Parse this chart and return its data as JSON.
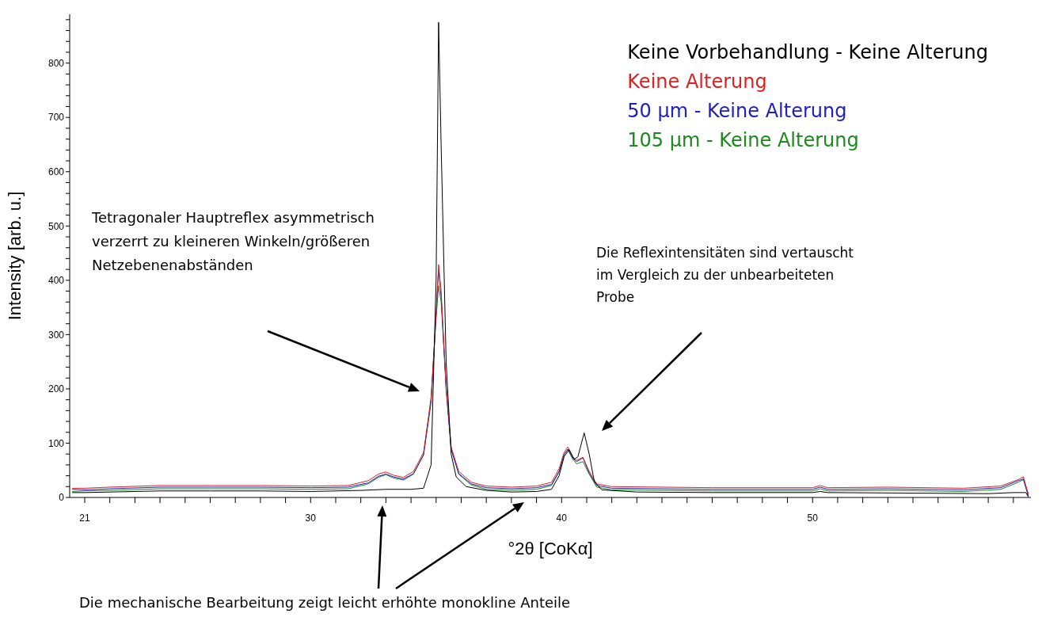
{
  "chart_data": {
    "type": "line",
    "xlabel": "°2θ [CoKα]",
    "ylabel": "Intensity [arb. u.]",
    "xlim": [
      20.4,
      58.7
    ],
    "xticks": [
      {
        "value": 21,
        "label": "21"
      },
      {
        "value": 22,
        "label": null
      },
      {
        "value": 23,
        "label": null
      },
      {
        "value": 24,
        "label": null
      },
      {
        "value": 25,
        "label": null
      },
      {
        "value": 26,
        "label": null
      },
      {
        "value": 27,
        "label": null
      },
      {
        "value": 28,
        "label": null
      },
      {
        "value": 29,
        "label": null
      },
      {
        "value": 30,
        "label": "30"
      },
      {
        "value": 31,
        "label": null
      },
      {
        "value": 32,
        "label": null
      },
      {
        "value": 33,
        "label": null
      },
      {
        "value": 34,
        "label": null
      },
      {
        "value": 35,
        "label": null
      },
      {
        "value": 36,
        "label": null
      },
      {
        "value": 37,
        "label": null
      },
      {
        "value": 38,
        "label": null
      },
      {
        "value": 39,
        "label": null
      },
      {
        "value": 40,
        "label": "40"
      },
      {
        "value": 41,
        "label": null
      },
      {
        "value": 42,
        "label": null
      },
      {
        "value": 43,
        "label": null
      },
      {
        "value": 44,
        "label": null
      },
      {
        "value": 45,
        "label": null
      },
      {
        "value": 46,
        "label": null
      },
      {
        "value": 47,
        "label": null
      },
      {
        "value": 48,
        "label": null
      },
      {
        "value": 49,
        "label": null
      },
      {
        "value": 50,
        "label": "50"
      },
      {
        "value": 51,
        "label": null
      },
      {
        "value": 52,
        "label": null
      },
      {
        "value": 53,
        "label": null
      },
      {
        "value": 54,
        "label": null
      },
      {
        "value": 55,
        "label": null
      },
      {
        "value": 56,
        "label": null
      },
      {
        "value": 57,
        "label": null
      },
      {
        "value": 58,
        "label": null
      }
    ],
    "ylim": [
      0,
      890
    ],
    "yticks": [
      0,
      {
        "value": 20,
        "label": null
      },
      {
        "value": 40,
        "label": null
      },
      {
        "value": 60,
        "label": null
      },
      {
        "value": 80,
        "label": null
      },
      100,
      {
        "value": 120,
        "label": null
      },
      {
        "value": 140,
        "label": null
      },
      {
        "value": 160,
        "label": null
      },
      {
        "value": 180,
        "label": null
      },
      200,
      {
        "value": 220,
        "label": null
      },
      {
        "value": 240,
        "label": null
      },
      {
        "value": 260,
        "label": null
      },
      {
        "value": 280,
        "label": null
      },
      300,
      {
        "value": 320,
        "label": null
      },
      {
        "value": 340,
        "label": null
      },
      {
        "value": 360,
        "label": null
      },
      {
        "value": 380,
        "label": null
      },
      400,
      {
        "value": 420,
        "label": null
      },
      {
        "value": 440,
        "label": null
      },
      {
        "value": 460,
        "label": null
      },
      {
        "value": 480,
        "label": null
      },
      500,
      {
        "value": 520,
        "label": null
      },
      {
        "value": 540,
        "label": null
      },
      {
        "value": 560,
        "label": null
      },
      {
        "value": 580,
        "label": null
      },
      600,
      {
        "value": 620,
        "label": null
      },
      {
        "value": 640,
        "label": null
      },
      {
        "value": 660,
        "label": null
      },
      {
        "value": 680,
        "label": null
      },
      700,
      {
        "value": 720,
        "label": null
      },
      {
        "value": 740,
        "label": null
      },
      {
        "value": 760,
        "label": null
      },
      {
        "value": 780,
        "label": null
      },
      800,
      {
        "value": 820,
        "label": null
      },
      {
        "value": 840,
        "label": null
      },
      {
        "value": 860,
        "label": null
      },
      {
        "value": 880,
        "label": null
      }
    ],
    "grid": false,
    "legend": "top right",
    "marker": "none",
    "line_style": "solid",
    "series": [
      {
        "name": "Keine Vorbehandlung - Keine Alterung",
        "color": "#000000",
        "x": [
          20.5,
          21,
          22,
          24,
          26,
          28,
          30,
          32,
          33,
          34,
          34.5,
          34.8,
          35,
          35.1,
          35.2,
          35.4,
          35.6,
          35.8,
          36.2,
          37,
          38,
          39,
          39.6,
          39.9,
          40.1,
          40.3,
          40.5,
          40.65,
          40.9,
          41.1,
          41.3,
          41.6,
          43,
          46,
          50,
          50.3,
          50.6,
          54,
          57,
          58,
          58.5,
          58.6
        ],
        "values": [
          9,
          9,
          10,
          12,
          12,
          12,
          11,
          13,
          15,
          15,
          17,
          60,
          400,
          875,
          650,
          250,
          80,
          38,
          20,
          13,
          10,
          11,
          15,
          40,
          75,
          88,
          70,
          75,
          119,
          80,
          30,
          14,
          10,
          9,
          9,
          11,
          9,
          8,
          7,
          9,
          9,
          1
        ]
      },
      {
        "name": "Keine Alterung",
        "color": "#e02020",
        "x": [
          20.5,
          21,
          22,
          24,
          26,
          28,
          30,
          31.5,
          32.3,
          32.7,
          33,
          33.3,
          33.7,
          34.1,
          34.5,
          34.8,
          35,
          35.1,
          35.2,
          35.4,
          35.6,
          35.9,
          36.4,
          37,
          38,
          39,
          39.6,
          39.9,
          40.1,
          40.25,
          40.45,
          40.6,
          40.85,
          41.1,
          41.4,
          42,
          46,
          50,
          50.3,
          50.6,
          53,
          56,
          57.5,
          58.2,
          58.4,
          58.6
        ],
        "values": [
          17,
          17,
          19,
          22,
          22,
          22,
          21,
          22,
          31,
          43,
          47,
          41,
          37,
          48,
          83,
          180,
          340,
          429,
          380,
          203,
          93,
          48,
          28,
          21,
          19,
          21,
          28,
          53,
          83,
          93,
          75,
          68,
          74,
          48,
          25,
          20,
          18,
          18,
          22,
          18,
          19,
          17,
          21,
          33,
          38,
          6
        ]
      },
      {
        "name": "50 µm - Keine Alterung",
        "color": "#2020c0",
        "x": [
          20.5,
          21,
          22,
          24,
          26,
          28,
          30,
          31.5,
          32.3,
          32.7,
          33,
          33.3,
          33.7,
          34.1,
          34.5,
          34.8,
          35,
          35.1,
          35.2,
          35.4,
          35.6,
          35.9,
          36.4,
          37,
          38,
          39,
          39.6,
          39.9,
          40.1,
          40.25,
          40.45,
          40.6,
          40.85,
          41.1,
          41.4,
          42,
          46,
          50,
          50.3,
          50.6,
          53,
          56,
          57.5,
          58.2,
          58.4,
          58.6
        ],
        "values": [
          15,
          14,
          16,
          19,
          19,
          19,
          18,
          19,
          27,
          39,
          43,
          38,
          34,
          44,
          78,
          175,
          335,
          420,
          372,
          198,
          88,
          44,
          25,
          18,
          16,
          18,
          24,
          48,
          79,
          89,
          72,
          66,
          73,
          45,
          22,
          17,
          15,
          15,
          19,
          15,
          16,
          14,
          18,
          31,
          34,
          2
        ]
      },
      {
        "name": "105 µm - Keine Alterung",
        "color": "#1a8a1a",
        "x": [
          20.5,
          21,
          22,
          24,
          26,
          28,
          30,
          31.5,
          32.3,
          32.7,
          33,
          33.3,
          33.7,
          34.1,
          34.5,
          34.8,
          35,
          35.1,
          35.2,
          35.4,
          35.6,
          35.9,
          36.4,
          37,
          38,
          39,
          39.6,
          39.9,
          40.1,
          40.25,
          40.45,
          40.6,
          40.85,
          41.1,
          41.4,
          42,
          46,
          50,
          50.3,
          50.6,
          53,
          56,
          57.5,
          58.2,
          58.4,
          58.6
        ],
        "values": [
          11,
          12,
          13,
          16,
          16,
          16,
          15,
          16,
          25,
          37,
          42,
          36,
          32,
          43,
          79,
          185,
          330,
          390,
          360,
          205,
          92,
          43,
          23,
          15,
          13,
          15,
          22,
          47,
          79,
          88,
          70,
          62,
          66,
          43,
          19,
          14,
          12,
          12,
          16,
          12,
          13,
          11,
          15,
          28,
          33,
          3
        ]
      }
    ],
    "annotations": [
      "Tetragonaler Hauptreflex asymmetrisch verzerrt zu kleineren Winkeln/größeren Netzebenenabständen",
      "Die Reflexintensitäten sind vertauscht im Vergleich zu der unbearbeiteten Probe",
      "Die mechanische Bearbeitung zeigt leicht erhöhte monokline Anteile"
    ]
  }
}
